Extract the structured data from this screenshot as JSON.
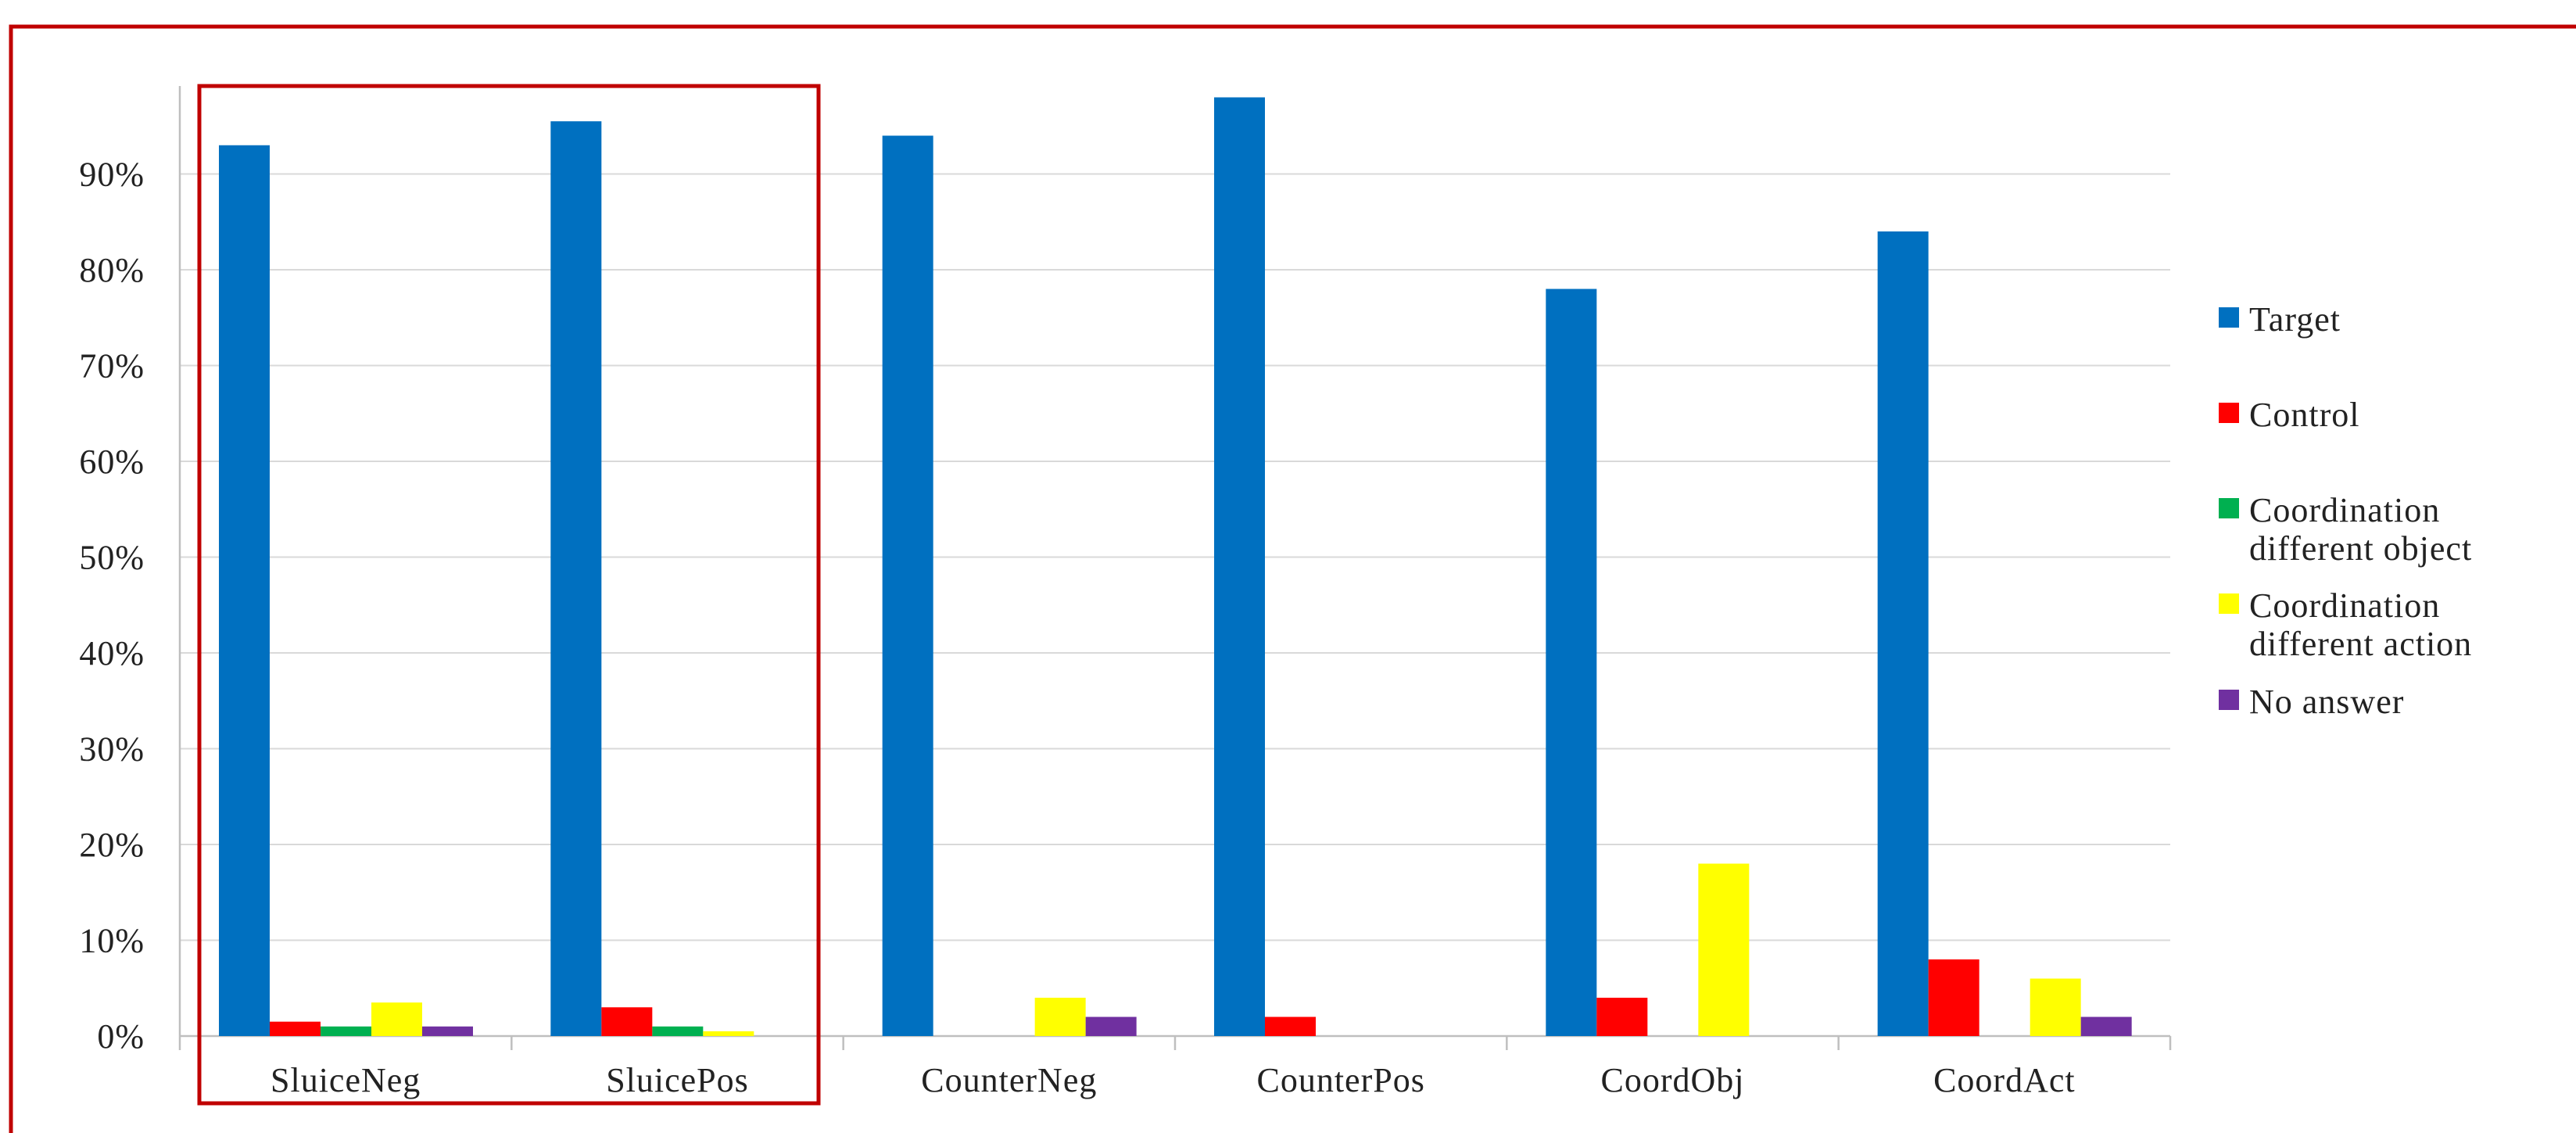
{
  "chart_data": {
    "type": "bar",
    "categories": [
      "SluiceNeg",
      "SluicePos",
      "CounterNeg",
      "CounterPos",
      "CoordObj",
      "CoordAct"
    ],
    "series": [
      {
        "name": "Target",
        "color": "#0070C0",
        "values": [
          93,
          95.5,
          94,
          98,
          78,
          84
        ]
      },
      {
        "name": "Control",
        "color": "#FF0000",
        "values": [
          1.5,
          3,
          0,
          2,
          4,
          8
        ]
      },
      {
        "name": "Coordination different object",
        "legend_lines": [
          "Coordination",
          "different object"
        ],
        "color": "#00B050",
        "values": [
          1,
          1,
          0,
          0,
          0,
          0
        ]
      },
      {
        "name": "Coordination different action",
        "legend_lines": [
          "Coordination",
          "different action"
        ],
        "color": "#FFFF00",
        "values": [
          3.5,
          0.5,
          4,
          0,
          18,
          6
        ]
      },
      {
        "name": "No answer",
        "color": "#7030A0",
        "values": [
          1,
          0,
          2,
          0,
          0,
          2
        ]
      }
    ],
    "yticks": [
      "0%",
      "10%",
      "20%",
      "30%",
      "40%",
      "50%",
      "60%",
      "70%",
      "80%",
      "90%"
    ],
    "ylim": [
      0,
      100
    ],
    "grid": true,
    "legend_position": "right",
    "title": "",
    "xlabel": "",
    "ylabel": ""
  },
  "colors": {
    "frame": "#C00000",
    "highlight_box": "#C00000",
    "gridline": "#D9D9D9",
    "axis": "#BFBFBF"
  }
}
